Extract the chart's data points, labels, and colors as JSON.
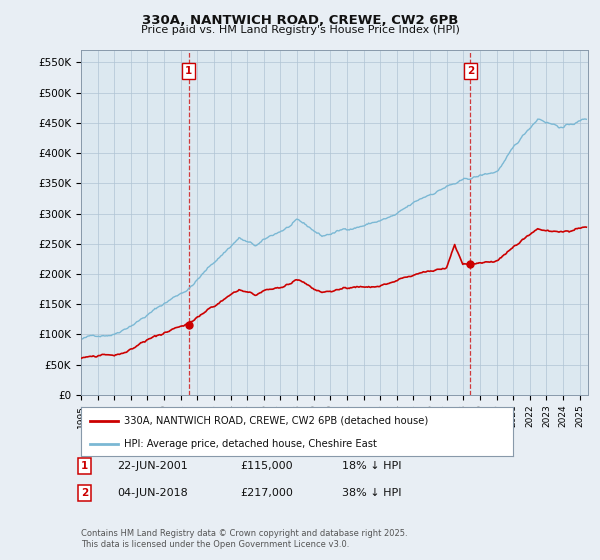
{
  "title_line1": "330A, NANTWICH ROAD, CREWE, CW2 6PB",
  "title_line2": "Price paid vs. HM Land Registry's House Price Index (HPI)",
  "ylabel_ticks": [
    "£0",
    "£50K",
    "£100K",
    "£150K",
    "£200K",
    "£250K",
    "£300K",
    "£350K",
    "£400K",
    "£450K",
    "£500K",
    "£550K"
  ],
  "ytick_values": [
    0,
    50000,
    100000,
    150000,
    200000,
    250000,
    300000,
    350000,
    400000,
    450000,
    500000,
    550000
  ],
  "ylim": [
    0,
    570000
  ],
  "xlim_start": 1995.0,
  "xlim_end": 2025.5,
  "hpi_color": "#7bb8d4",
  "price_color": "#cc0000",
  "sale1_date": 2001.472,
  "sale1_price": 115000,
  "sale2_date": 2018.42,
  "sale2_price": 217000,
  "legend_label1": "330A, NANTWICH ROAD, CREWE, CW2 6PB (detached house)",
  "legend_label2": "HPI: Average price, detached house, Cheshire East",
  "annotation1_label": "1",
  "annotation1_date": "22-JUN-2001",
  "annotation1_price": "£115,000",
  "annotation1_hpi": "18% ↓ HPI",
  "annotation2_label": "2",
  "annotation2_date": "04-JUN-2018",
  "annotation2_price": "£217,000",
  "annotation2_hpi": "38% ↓ HPI",
  "footer": "Contains HM Land Registry data © Crown copyright and database right 2025.\nThis data is licensed under the Open Government Licence v3.0.",
  "background_color": "#e8eef4",
  "plot_bg_color": "#dce8f0",
  "grid_color": "#b0c4d4"
}
